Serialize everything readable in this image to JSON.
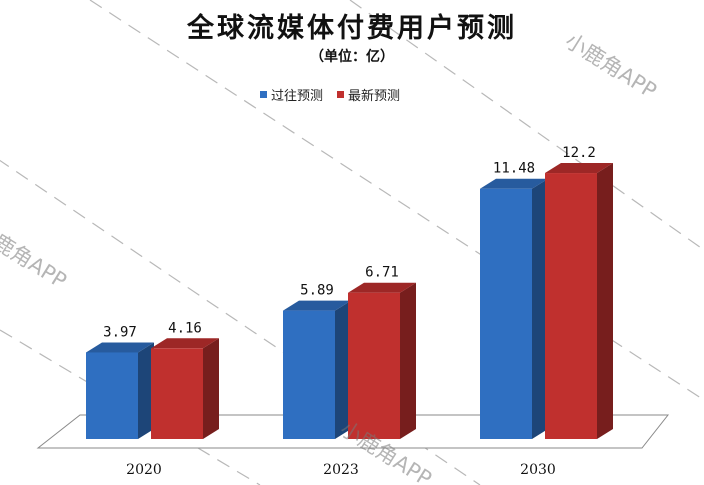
{
  "title": "全球流媒体付费用户预测",
  "subtitle": "（单位：亿）",
  "watermark": "小鹿角APP",
  "chart_data": {
    "type": "bar",
    "categories": [
      "2020",
      "2023",
      "2030"
    ],
    "series": [
      {
        "name": "过往预测",
        "values": [
          3.97,
          5.89,
          11.48
        ],
        "labels": [
          "3.97",
          "5.89",
          "11.48"
        ],
        "color": "#2f6fc1"
      },
      {
        "name": "最新预测",
        "values": [
          4.16,
          6.71,
          12.2
        ],
        "labels": [
          "4.16",
          "6.71",
          "12.2"
        ],
        "color": "#c0302e"
      }
    ],
    "ylim": [
      0,
      13
    ],
    "legend_position": "top-center",
    "grid": false
  }
}
